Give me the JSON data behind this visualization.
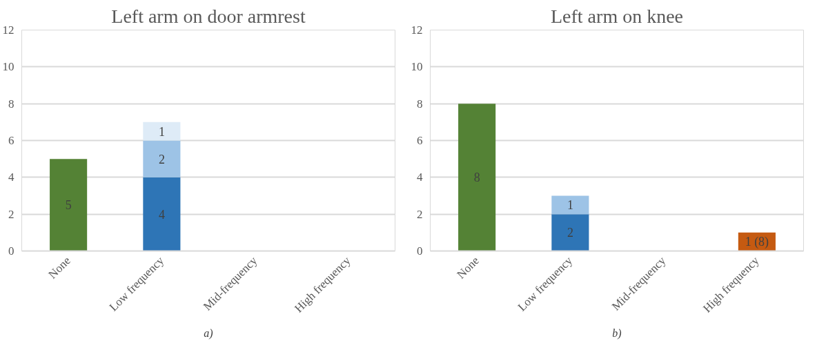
{
  "chart_data": [
    {
      "type": "bar",
      "title": "Left arm on door armrest",
      "stacked": true,
      "categories": [
        "None",
        "Low frequency",
        "Mid-frequency",
        "High frequency"
      ],
      "ylim": [
        0,
        12
      ],
      "yticks": [
        0,
        2,
        4,
        6,
        8,
        10,
        12
      ],
      "grid": "y",
      "annotations": [
        "a)"
      ],
      "series": [
        {
          "color": "#548235",
          "values": [
            5,
            null,
            null,
            null
          ],
          "value_labels": [
            "5",
            null,
            null,
            null
          ]
        },
        {
          "color": "#2e75b6",
          "values": [
            null,
            4,
            null,
            null
          ],
          "value_labels": [
            null,
            "4",
            null,
            null
          ]
        },
        {
          "color": "#9dc3e6",
          "values": [
            null,
            2,
            null,
            null
          ],
          "value_labels": [
            null,
            "2",
            null,
            null
          ]
        },
        {
          "color": "#deebf7",
          "values": [
            null,
            1,
            null,
            null
          ],
          "value_labels": [
            null,
            "1",
            null,
            null
          ]
        }
      ]
    },
    {
      "type": "bar",
      "title": "Left arm on knee",
      "stacked": true,
      "categories": [
        "None",
        "Low frequency",
        "Mid-frequency",
        "High frequency"
      ],
      "ylim": [
        0,
        12
      ],
      "yticks": [
        0,
        2,
        4,
        6,
        8,
        10,
        12
      ],
      "grid": "y",
      "annotations": [
        "b)"
      ],
      "series": [
        {
          "color": "#548235",
          "values": [
            8,
            null,
            null,
            null
          ],
          "value_labels": [
            "8",
            null,
            null,
            null
          ]
        },
        {
          "color": "#2e75b6",
          "values": [
            null,
            2,
            null,
            null
          ],
          "value_labels": [
            null,
            "2",
            null,
            null
          ]
        },
        {
          "color": "#9dc3e6",
          "values": [
            null,
            1,
            null,
            null
          ],
          "value_labels": [
            null,
            "1",
            null,
            null
          ]
        },
        {
          "color": "#c55a11",
          "values": [
            null,
            null,
            null,
            1
          ],
          "value_labels": [
            null,
            null,
            null,
            "1 (8)"
          ]
        }
      ]
    }
  ]
}
